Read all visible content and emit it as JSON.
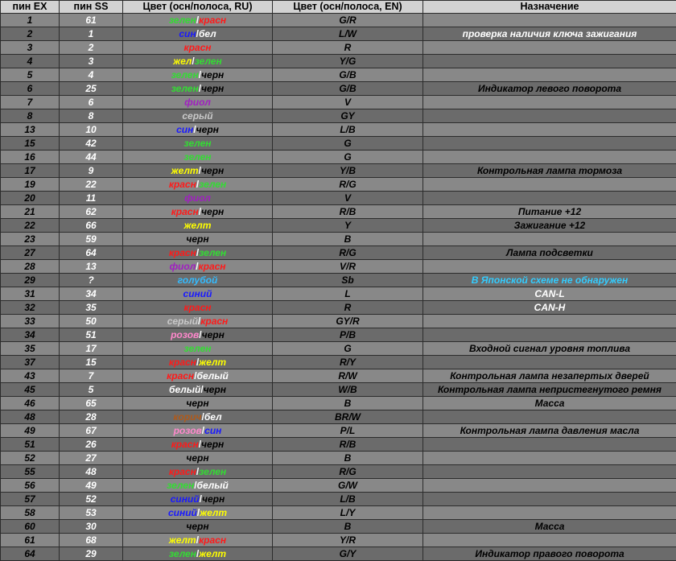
{
  "headers": [
    "пин EX",
    "пин SS",
    "Цвет (осн/полоса, RU)",
    "Цвет (осн/полоса, EN)",
    "Назначение"
  ],
  "colors": {
    "green": "#33dd33",
    "red": "#ff1a1a",
    "blue": "#1a1aff",
    "white": "#ffffff",
    "yellow": "#ffff00",
    "black": "#000000",
    "violet": "#a020c0",
    "gray": "#c8c8c8",
    "brown": "#b05a1a",
    "pink": "#ff88cc",
    "lightblue": "#33bbff"
  },
  "rows": [
    {
      "ex": "1",
      "ss": "61",
      "ru": [
        {
          "t": "зелен",
          "c": "green"
        },
        {
          "t": "красн",
          "c": "red"
        }
      ],
      "en": "G/R",
      "purpose": "",
      "pstyle": ""
    },
    {
      "ex": "2",
      "ss": "1",
      "ru": [
        {
          "t": "син",
          "c": "blue"
        },
        {
          "t": "бел",
          "c": "white"
        }
      ],
      "en": "L/W",
      "purpose": "проверка наличия ключа зажигания",
      "pstyle": "white"
    },
    {
      "ex": "3",
      "ss": "2",
      "ru": [
        {
          "t": "красн",
          "c": "red"
        }
      ],
      "en": "R",
      "purpose": "",
      "pstyle": ""
    },
    {
      "ex": "4",
      "ss": "3",
      "ru": [
        {
          "t": "жел",
          "c": "yellow"
        },
        {
          "t": "зелен",
          "c": "green"
        }
      ],
      "en": "Y/G",
      "purpose": "",
      "pstyle": ""
    },
    {
      "ex": "5",
      "ss": "4",
      "ru": [
        {
          "t": "зелен",
          "c": "green"
        },
        {
          "t": "черн",
          "c": "black"
        }
      ],
      "en": "G/B",
      "purpose": "",
      "pstyle": ""
    },
    {
      "ex": "6",
      "ss": "25",
      "ru": [
        {
          "t": "зелен",
          "c": "green"
        },
        {
          "t": "черн",
          "c": "black"
        }
      ],
      "en": "G/B",
      "purpose": "Индикатор левого поворота",
      "pstyle": ""
    },
    {
      "ex": "7",
      "ss": "6",
      "ru": [
        {
          "t": "фиол",
          "c": "violet"
        }
      ],
      "en": "V",
      "purpose": "",
      "pstyle": ""
    },
    {
      "ex": "8",
      "ss": "8",
      "ru": [
        {
          "t": "серый",
          "c": "gray"
        }
      ],
      "en": "GY",
      "purpose": "",
      "pstyle": ""
    },
    {
      "ex": "13",
      "ss": "10",
      "ru": [
        {
          "t": "син",
          "c": "blue"
        },
        {
          "t": "черн",
          "c": "black"
        }
      ],
      "en": "L/B",
      "purpose": "",
      "pstyle": ""
    },
    {
      "ex": "15",
      "ss": "42",
      "ru": [
        {
          "t": "зелен",
          "c": "green"
        }
      ],
      "en": "G",
      "purpose": "",
      "pstyle": ""
    },
    {
      "ex": "16",
      "ss": "44",
      "ru": [
        {
          "t": "зелен",
          "c": "green"
        }
      ],
      "en": "G",
      "purpose": "",
      "pstyle": ""
    },
    {
      "ex": "17",
      "ss": "9",
      "ru": [
        {
          "t": "желт",
          "c": "yellow"
        },
        {
          "t": "черн",
          "c": "black"
        }
      ],
      "en": "Y/B",
      "purpose": "Контрольная лампа тормоза",
      "pstyle": ""
    },
    {
      "ex": "19",
      "ss": "22",
      "ru": [
        {
          "t": "красн",
          "c": "red"
        },
        {
          "t": "зелен",
          "c": "green"
        }
      ],
      "en": "R/G",
      "purpose": "",
      "pstyle": ""
    },
    {
      "ex": "20",
      "ss": "11",
      "ru": [
        {
          "t": "фиол",
          "c": "violet"
        }
      ],
      "en": "V",
      "purpose": "",
      "pstyle": ""
    },
    {
      "ex": "21",
      "ss": "62",
      "ru": [
        {
          "t": "красн",
          "c": "red"
        },
        {
          "t": "черн",
          "c": "black"
        }
      ],
      "en": "R/B",
      "purpose": "Питание +12",
      "pstyle": ""
    },
    {
      "ex": "22",
      "ss": "66",
      "ru": [
        {
          "t": "желт",
          "c": "yellow"
        }
      ],
      "en": "Y",
      "purpose": "Зажигание +12",
      "pstyle": ""
    },
    {
      "ex": "23",
      "ss": "59",
      "ru": [
        {
          "t": "черн",
          "c": "black"
        }
      ],
      "en": "B",
      "purpose": "",
      "pstyle": ""
    },
    {
      "ex": "27",
      "ss": "64",
      "ru": [
        {
          "t": "красн",
          "c": "red"
        },
        {
          "t": "зелен",
          "c": "green"
        }
      ],
      "en": "R/G",
      "purpose": "Лампа подсветки",
      "pstyle": ""
    },
    {
      "ex": "28",
      "ss": "13",
      "ru": [
        {
          "t": "фиол",
          "c": "violet"
        },
        {
          "t": "красн",
          "c": "red"
        }
      ],
      "en": "V/R",
      "purpose": "",
      "pstyle": ""
    },
    {
      "ex": "29",
      "ss": "?",
      "ss_color": "lightblue",
      "ru": [
        {
          "t": "голубой",
          "c": "lightblue"
        }
      ],
      "en": "Sb",
      "purpose": "В Японской схеме не обнаружен",
      "pstyle": "cyan"
    },
    {
      "ex": "31",
      "ss": "34",
      "ru": [
        {
          "t": "синий",
          "c": "blue"
        }
      ],
      "en": "L",
      "purpose": "CAN-L",
      "pstyle": "white"
    },
    {
      "ex": "32",
      "ss": "35",
      "ru": [
        {
          "t": "красн",
          "c": "red"
        }
      ],
      "en": "R",
      "purpose": "CAN-H",
      "pstyle": "white"
    },
    {
      "ex": "33",
      "ss": "50",
      "ru": [
        {
          "t": "серый",
          "c": "gray"
        },
        {
          "t": "красн",
          "c": "red"
        }
      ],
      "en": "GY/R",
      "purpose": "",
      "pstyle": ""
    },
    {
      "ex": "34",
      "ss": "51",
      "ru": [
        {
          "t": "розов",
          "c": "pink"
        },
        {
          "t": "черн",
          "c": "black"
        }
      ],
      "en": "P/B",
      "purpose": "",
      "pstyle": ""
    },
    {
      "ex": "35",
      "ss": "17",
      "ru": [
        {
          "t": "зелен",
          "c": "green"
        }
      ],
      "en": "G",
      "purpose": "Входной сигнал уровня топлива",
      "pstyle": ""
    },
    {
      "ex": "37",
      "ss": "15",
      "ru": [
        {
          "t": "красн",
          "c": "red"
        },
        {
          "t": "желт",
          "c": "yellow"
        }
      ],
      "en": "R/Y",
      "purpose": "",
      "pstyle": ""
    },
    {
      "ex": "43",
      "ss": "7",
      "ru": [
        {
          "t": "красн",
          "c": "red"
        },
        {
          "t": "белый",
          "c": "white"
        }
      ],
      "en": "R/W",
      "purpose": "Контрольная лампа незапертых дверей",
      "pstyle": ""
    },
    {
      "ex": "45",
      "ss": "5",
      "ru": [
        {
          "t": "белый",
          "c": "white"
        },
        {
          "t": "черн",
          "c": "black"
        }
      ],
      "en": "W/B",
      "purpose": "Контрольная лампа непристегнутого ремня",
      "pstyle": ""
    },
    {
      "ex": "46",
      "ss": "65",
      "ru": [
        {
          "t": "черн",
          "c": "black"
        }
      ],
      "en": "B",
      "purpose": "Масса",
      "pstyle": ""
    },
    {
      "ex": "48",
      "ss": "28",
      "ru": [
        {
          "t": "корич",
          "c": "brown"
        },
        {
          "t": "бел",
          "c": "white"
        }
      ],
      "en": "BR/W",
      "purpose": "",
      "pstyle": ""
    },
    {
      "ex": "49",
      "ss": "67",
      "ru": [
        {
          "t": "розов",
          "c": "pink"
        },
        {
          "t": "син",
          "c": "blue"
        }
      ],
      "en": "P/L",
      "purpose": "Контрольная лампа давления масла",
      "pstyle": ""
    },
    {
      "ex": "51",
      "ss": "26",
      "ru": [
        {
          "t": "красн",
          "c": "red"
        },
        {
          "t": "черн",
          "c": "black"
        }
      ],
      "en": "R/B",
      "purpose": "",
      "pstyle": ""
    },
    {
      "ex": "52",
      "ss": "27",
      "ru": [
        {
          "t": "черн",
          "c": "black"
        }
      ],
      "en": "B",
      "purpose": "",
      "pstyle": ""
    },
    {
      "ex": "55",
      "ss": "48",
      "ru": [
        {
          "t": "красн",
          "c": "red"
        },
        {
          "t": "зелен",
          "c": "green"
        }
      ],
      "en": "R/G",
      "purpose": "",
      "pstyle": ""
    },
    {
      "ex": "56",
      "ss": "49",
      "ru": [
        {
          "t": "зелен",
          "c": "green"
        },
        {
          "t": "белый",
          "c": "white"
        }
      ],
      "en": "G/W",
      "purpose": "",
      "pstyle": ""
    },
    {
      "ex": "57",
      "ss": "52",
      "ru": [
        {
          "t": "синий",
          "c": "blue"
        },
        {
          "t": "черн",
          "c": "black"
        }
      ],
      "en": "L/B",
      "purpose": "",
      "pstyle": ""
    },
    {
      "ex": "58",
      "ss": "53",
      "ru": [
        {
          "t": "синий",
          "c": "blue"
        },
        {
          "t": "желт",
          "c": "yellow"
        }
      ],
      "en": "L/Y",
      "purpose": "",
      "pstyle": ""
    },
    {
      "ex": "60",
      "ss": "30",
      "ru": [
        {
          "t": "черн",
          "c": "black"
        }
      ],
      "en": "B",
      "purpose": "Масса",
      "pstyle": ""
    },
    {
      "ex": "61",
      "ss": "68",
      "ru": [
        {
          "t": "желт",
          "c": "yellow"
        },
        {
          "t": "красн",
          "c": "red"
        }
      ],
      "en": "Y/R",
      "purpose": "",
      "pstyle": ""
    },
    {
      "ex": "64",
      "ss": "29",
      "ru": [
        {
          "t": "зелен",
          "c": "green"
        },
        {
          "t": "желт",
          "c": "yellow"
        }
      ],
      "en": "G/Y",
      "purpose": "Индикатор правого поворота",
      "pstyle": ""
    }
  ]
}
